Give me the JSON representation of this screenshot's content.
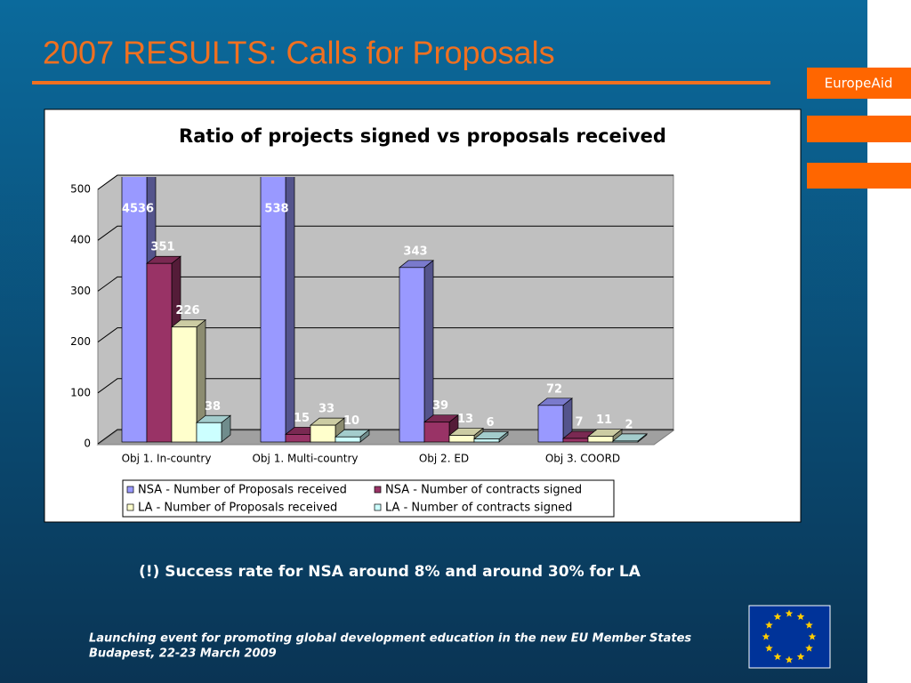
{
  "slide_title": "2007 RESULTS: Calls for Proposals",
  "brand": "EuropeAid",
  "note": "(!) Success rate for NSA around 8% and around 30% for LA",
  "footer": [
    "Launching event for promoting global development education in the new EU Member States",
    "Budapest, 22-23 March 2009"
  ],
  "chart_data": {
    "type": "bar3d",
    "title": "Ratio of projects signed vs proposals received",
    "categories": [
      "Obj 1. In-country",
      "Obj 1. Multi-country",
      "Obj 2. ED",
      "Obj 3. COORD"
    ],
    "series": [
      {
        "name": "NSA - Number of Proposals received",
        "color": "#9999ff",
        "values": [
          4536,
          538,
          343,
          72
        ]
      },
      {
        "name": "NSA - Number of contracts signed",
        "color": "#993366",
        "values": [
          351,
          15,
          39,
          7
        ]
      },
      {
        "name": "LA - Number of Proposals received",
        "color": "#ffffcc",
        "values": [
          226,
          33,
          13,
          11
        ]
      },
      {
        "name": "LA - Number of contracts signed",
        "color": "#ccffff",
        "values": [
          38,
          10,
          6,
          2
        ]
      }
    ],
    "ylim": [
      0,
      500
    ],
    "yticks": [
      0,
      100,
      200,
      300,
      400,
      500
    ],
    "grid": true,
    "legend": "bottom"
  }
}
